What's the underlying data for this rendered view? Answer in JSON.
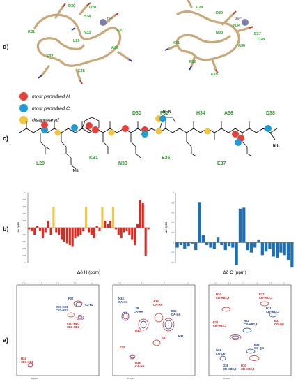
{
  "panels": {
    "a": "a)",
    "b": "b)",
    "c": "c)",
    "d": "d)"
  },
  "legend": [
    {
      "label": "most perturbed H",
      "color": "#e8413a"
    },
    {
      "label": "most perturbed C",
      "color": "#1f9bd6"
    },
    {
      "label": "disappeared",
      "color": "#f2c53d"
    }
  ],
  "structure_labels": {
    "left": [
      "D30",
      "D28",
      "E37",
      "H34",
      "Zn²⁺",
      "N33",
      "K31",
      "A36",
      "F32",
      "E35",
      "L29"
    ],
    "right": [
      "L29",
      "D30",
      "Zn²⁺",
      "H34",
      "E37",
      "N33",
      "K31",
      "A36",
      "F32",
      "E35",
      "D28"
    ]
  },
  "residue_labels_top": [
    "D30",
    "F32",
    "H34",
    "A36",
    "D38"
  ],
  "residue_labels_bottom": [
    "L29",
    "K31",
    "N33",
    "E35",
    "E37"
  ],
  "chem_atoms": {
    "nh2": "NH₂",
    "nh3": "⁺NH₃",
    "n": "N",
    "h": "H"
  },
  "chart_data": [
    {
      "type": "bar",
      "title": "",
      "xlabel": "Δδ H (ppm)",
      "ylabel": "Δδ ppm",
      "ylim": [
        -0.1,
        0.1
      ],
      "yticks": [
        "0.1",
        "0.08",
        "0.06",
        "0.04",
        "0.02",
        "0",
        "-0.02",
        "-0.04",
        "-0.06",
        "-0.08",
        "-0.1"
      ],
      "values": [
        -0.005,
        -0.01,
        -0.02,
        0.005,
        -0.01,
        -0.03,
        -0.015,
        0.02,
        -0.02,
        0.06,
        -0.015,
        -0.02,
        -0.035,
        -0.04,
        -0.045,
        -0.05,
        -0.055,
        -0.03,
        -0.025,
        -0.02,
        -0.01,
        0.06,
        -0.015,
        -0.02,
        -0.03,
        0.005,
        -0.01,
        0.06,
        0.02,
        0.01,
        0.02,
        0.06,
        -0.005,
        -0.02,
        -0.03,
        -0.015,
        -0.01,
        -0.02,
        -0.035,
        -0.05,
        0.01,
        0.08,
        0.07,
        -0.08,
        -0.005
      ],
      "highlight": [
        9,
        21,
        27,
        31
      ],
      "bar_color": "#e0281f",
      "highlight_color": "#f4c542"
    },
    {
      "type": "bar",
      "title": "",
      "xlabel": "Δδ C (ppm)",
      "ylabel": "Δδ ppm",
      "ylim": [
        -0.4,
        1.0
      ],
      "yticks": [
        "1",
        "0.8",
        "0.6",
        "0.4",
        "0.2",
        "0",
        "-0.2",
        "-0.4"
      ],
      "values": [
        -0.1,
        -0.05,
        -0.12,
        -0.08,
        -0.02,
        -0.15,
        0.8,
        0.15,
        -0.05,
        -0.1,
        -0.12,
        0.1,
        -0.05,
        -0.15,
        -0.08,
        -0.1,
        -0.45,
        0.68,
        0.7,
        -0.15,
        -0.2,
        -0.1,
        0.05,
        -0.25,
        -0.18,
        -0.12,
        -0.28,
        -0.3,
        -0.2,
        -0.25,
        -0.35,
        -0.5
      ],
      "bar_color": "#1a6fb8"
    }
  ],
  "nmr_spectra": {
    "left": {
      "labels_red": [
        "CD1-HD1",
        "CD2-HD2",
        "CE1-HE1"
      ],
      "labels_blue": [
        "CE1-HE1",
        "CE2-HE2",
        "C2-H2"
      ],
      "residue_labels": [
        "F32",
        "H34"
      ],
      "xaxis": "¹H (ppm)",
      "xticks": [
        "7.6",
        "7.4",
        "7.2",
        "7.0",
        "6.8"
      ]
    },
    "middle": {
      "labels_red": [
        "A36",
        "CA-HA",
        "D30",
        "E37",
        "F32",
        "D38",
        "CA-HA"
      ],
      "labels_blue": [
        "N33",
        "CA-HA",
        "L29",
        "CA-HA",
        "E35",
        "CA-HA",
        "K31"
      ],
      "xaxis": "¹H (ppm)",
      "xticks": [
        "4.8",
        "4.6",
        "4.4",
        "4.2"
      ]
    },
    "right": {
      "labels_red": [
        "E37",
        "CB-HB2,3",
        "E37",
        "CG-QG",
        "F32",
        "CB-HB2,3",
        "H34",
        "CB-HB2,3",
        "D30",
        "CB-HB2,3"
      ],
      "labels_blue": [
        "D31",
        "CB-HB2,3",
        "N33",
        "CB-HB2,3",
        "E35",
        "CG-QG",
        "K31",
        "CG-QE",
        "D38",
        "CB-HB2,3"
      ],
      "xaxis": "¹H (ppm)",
      "xticks": [
        "3.2",
        "3.0",
        "2.8",
        "2.6",
        "2.4",
        "2.2"
      ]
    }
  }
}
